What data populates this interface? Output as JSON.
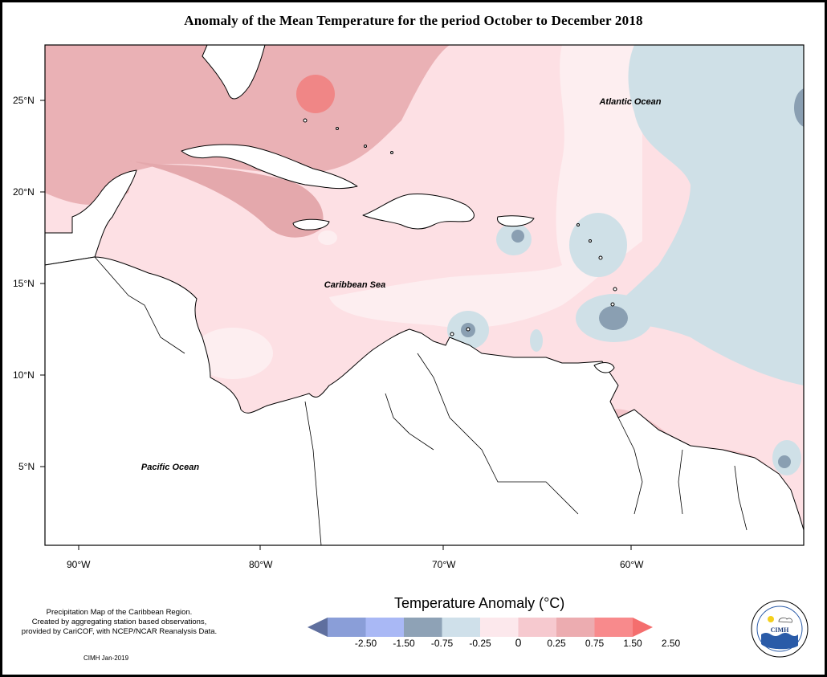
{
  "title": "Anomaly of the Mean Temperature for the period October to December 2018",
  "map": {
    "longitude_labels": [
      "90°W",
      "80°W",
      "70°W",
      "60°W"
    ],
    "latitude_labels": [
      "25°N",
      "20°N",
      "15°N",
      "10°N",
      "5°N"
    ],
    "region_labels": {
      "atlantic": "Atlantic Ocean",
      "caribbean": "Caribbean Sea",
      "pacific": "Pacific Ocean"
    }
  },
  "legend": {
    "title": "Temperature Anomaly (°C)",
    "ticks": [
      "-2.50",
      "-1.50",
      "-0.75",
      "-0.25",
      "0",
      "0.25",
      "0.75",
      "1.50",
      "2.50"
    ],
    "colors": [
      "#5f6f9e",
      "#8a9ed8",
      "#a9b8f5",
      "#8ea2b6",
      "#cfe0ea",
      "#fce8ec",
      "#f6c9cf",
      "#ecacb0",
      "#f88a8c",
      "#f46e6e"
    ]
  },
  "credit": {
    "line1": "Precipitation Map of the Caribbean Region.",
    "line2": "Created by aggregating station based observations,",
    "line3": "provided by CariCOF, with NCEP/NCAR Reanalysis Data.",
    "date": "CIMH Jan-2019"
  },
  "logo": {
    "name": "CIMH"
  }
}
